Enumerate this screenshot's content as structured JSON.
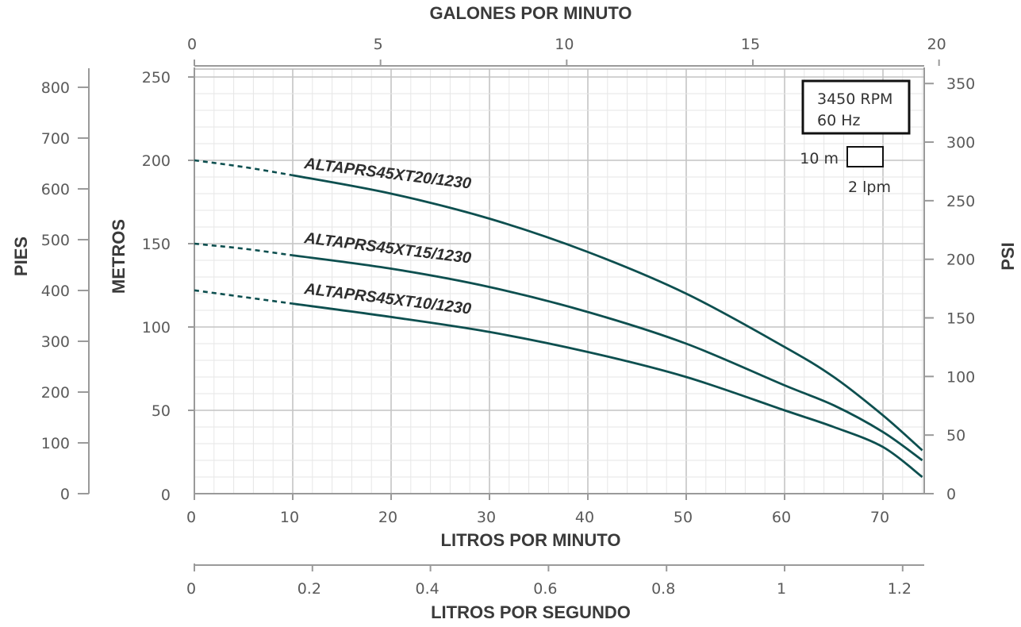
{
  "chart_data": {
    "type": "line",
    "xlabel": "LITROS POR MINUTO",
    "ylabel": "METROS",
    "x_ticks": [
      "0",
      "10",
      "20",
      "30",
      "40",
      "50",
      "60",
      "70"
    ],
    "y_ticks": [
      "50",
      "100",
      "150",
      "200",
      "250"
    ],
    "y_zero_label": "0",
    "xlim": [
      0,
      74
    ],
    "ylim": [
      0,
      255
    ],
    "grid": true,
    "colors": {
      "line": "#0d4f4f",
      "grid_major": "#c4c4c4",
      "grid_minor": "#e6e6e6"
    },
    "top_axis": {
      "label": "GALONES POR MINUTO",
      "ticks": [
        "0",
        "5",
        "10",
        "15",
        "20"
      ],
      "values": [
        0,
        5,
        10,
        15,
        20
      ]
    },
    "bottom_axis_2": {
      "label": "LITROS POR SEGUNDO",
      "ticks": [
        "0",
        "0.2",
        "0.4",
        "0.6",
        "0.8",
        "1",
        "1.2"
      ],
      "values": [
        0,
        0.2,
        0.4,
        0.6,
        0.8,
        1.0,
        1.2
      ]
    },
    "left_axis_2": {
      "label": "PIES",
      "ticks": [
        "0",
        "100",
        "200",
        "300",
        "400",
        "500",
        "600",
        "700",
        "800"
      ],
      "values": [
        0,
        100,
        200,
        300,
        400,
        500,
        600,
        700,
        800
      ]
    },
    "right_axis": {
      "label": "PSI",
      "ticks": [
        "0",
        "50",
        "100",
        "150",
        "200",
        "250",
        "300",
        "350"
      ],
      "values": [
        0,
        50,
        100,
        150,
        200,
        250,
        300,
        350
      ]
    },
    "info_box": {
      "line1": "3450 RPM",
      "line2": "60 Hz"
    },
    "grid_scale": {
      "y_label": "10 m",
      "x_label": "2 lpm"
    },
    "dashed_until_x": 10,
    "series": [
      {
        "name": "ALTAPRS45XT20/1230",
        "x": [
          0,
          5,
          10,
          20,
          30,
          40,
          50,
          60,
          65,
          70,
          74
        ],
        "y": [
          200,
          196,
          191,
          180,
          165,
          145,
          120,
          88,
          70,
          47,
          26
        ]
      },
      {
        "name": "ALTAPRS45XT15/1230",
        "x": [
          0,
          5,
          10,
          20,
          30,
          40,
          50,
          60,
          65,
          70,
          74
        ],
        "y": [
          150,
          147,
          143,
          135,
          124,
          109,
          90,
          65,
          53,
          37,
          20
        ]
      },
      {
        "name": "ALTAPRS45XT10/1230",
        "x": [
          0,
          5,
          10,
          20,
          30,
          40,
          50,
          60,
          65,
          70,
          74
        ],
        "y": [
          122,
          118,
          114,
          106,
          97,
          85,
          70,
          50,
          40,
          28,
          10
        ]
      }
    ]
  }
}
